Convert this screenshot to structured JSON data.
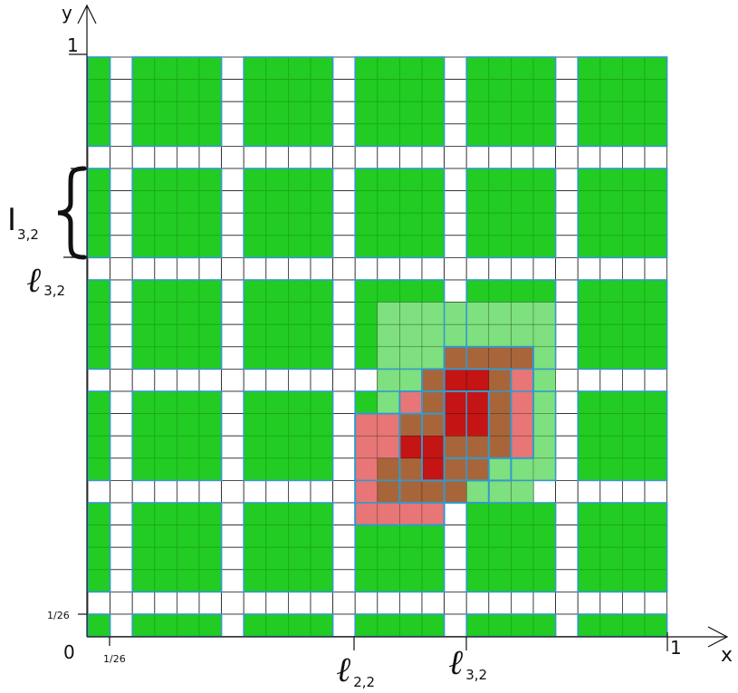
{
  "axes": {
    "x_label": "x",
    "y_label": "y",
    "origin_label": "0",
    "x_max_label": "1",
    "y_max_label": "1",
    "x_tick_label": "1/26",
    "y_tick_label": "1/26"
  },
  "grid": {
    "cells_per_axis": 26,
    "block_starts": [
      1,
      6,
      11,
      16,
      21,
      26
    ],
    "block_sizes": [
      1,
      4,
      4,
      4,
      4,
      4
    ]
  },
  "annotations": {
    "interval_symbol": "I",
    "interval_subscript": "3,2",
    "row_line_symbol": "ℓ",
    "row_line_subscript": "3,2",
    "col_lines": [
      {
        "symbol": "ℓ",
        "subscript": "2,2"
      },
      {
        "symbol": "ℓ",
        "subscript": "3,2"
      }
    ]
  },
  "colors": {
    "green_cell": "#22cc22",
    "green_grid": "#1aa51a",
    "block_outline": "#3399cc",
    "light_green": "#7ee07e",
    "light_red": "#e87676",
    "dark_red": "#c41414",
    "brown": "#a8653a",
    "white_grid": "#000000"
  },
  "overlay": {
    "light_green_cells": [
      [
        13,
        11
      ],
      [
        14,
        11
      ],
      [
        15,
        11
      ],
      [
        16,
        11
      ],
      [
        17,
        11
      ],
      [
        18,
        11
      ],
      [
        19,
        11
      ],
      [
        20,
        11
      ],
      [
        13,
        12
      ],
      [
        14,
        12
      ],
      [
        15,
        12
      ],
      [
        16,
        12
      ],
      [
        17,
        12
      ],
      [
        18,
        12
      ],
      [
        19,
        12
      ],
      [
        20,
        12
      ],
      [
        13,
        13
      ],
      [
        14,
        13
      ],
      [
        15,
        13
      ],
      [
        16,
        13
      ],
      [
        17,
        13
      ],
      [
        18,
        13
      ],
      [
        19,
        13
      ],
      [
        20,
        13
      ],
      [
        13,
        14
      ],
      [
        14,
        14
      ],
      [
        15,
        14
      ],
      [
        16,
        14
      ],
      [
        17,
        14
      ],
      [
        18,
        14
      ],
      [
        19,
        14
      ],
      [
        20,
        14
      ],
      [
        13,
        15
      ],
      [
        14,
        15
      ],
      [
        15,
        15
      ],
      [
        16,
        15
      ],
      [
        17,
        15
      ],
      [
        18,
        15
      ],
      [
        19,
        15
      ],
      [
        20,
        15
      ],
      [
        14,
        16
      ],
      [
        15,
        16
      ],
      [
        16,
        16
      ],
      [
        17,
        16
      ],
      [
        18,
        16
      ],
      [
        19,
        16
      ],
      [
        20,
        16
      ],
      [
        14,
        17
      ],
      [
        15,
        17
      ],
      [
        16,
        17
      ],
      [
        17,
        17
      ],
      [
        18,
        17
      ],
      [
        19,
        17
      ],
      [
        20,
        17
      ],
      [
        14,
        18
      ],
      [
        15,
        18
      ],
      [
        16,
        18
      ],
      [
        17,
        18
      ],
      [
        18,
        18
      ],
      [
        19,
        18
      ],
      [
        20,
        18
      ],
      [
        16,
        19
      ],
      [
        17,
        19
      ],
      [
        18,
        19
      ],
      [
        19,
        19
      ]
    ],
    "light_red_cells": [
      [
        12,
        16
      ],
      [
        13,
        16
      ],
      [
        12,
        17
      ],
      [
        13,
        17
      ],
      [
        12,
        18
      ],
      [
        13,
        18
      ],
      [
        12,
        19
      ],
      [
        13,
        19
      ],
      [
        14,
        19
      ],
      [
        15,
        19
      ],
      [
        12,
        20
      ],
      [
        13,
        20
      ],
      [
        14,
        20
      ],
      [
        15,
        20
      ],
      [
        14,
        15
      ],
      [
        15,
        15
      ],
      [
        17,
        13
      ],
      [
        18,
        13
      ],
      [
        19,
        14
      ],
      [
        19,
        15
      ],
      [
        19,
        16
      ],
      [
        19,
        17
      ]
    ],
    "brown_cells": [
      [
        16,
        13
      ],
      [
        17,
        13
      ],
      [
        18,
        13
      ],
      [
        19,
        13
      ],
      [
        15,
        14
      ],
      [
        18,
        14
      ],
      [
        15,
        15
      ],
      [
        18,
        15
      ],
      [
        14,
        16
      ],
      [
        15,
        16
      ],
      [
        18,
        16
      ],
      [
        14,
        17
      ],
      [
        16,
        17
      ],
      [
        17,
        17
      ],
      [
        18,
        17
      ],
      [
        13,
        18
      ],
      [
        14,
        18
      ],
      [
        16,
        18
      ],
      [
        17,
        18
      ],
      [
        13,
        19
      ],
      [
        14,
        19
      ],
      [
        15,
        19
      ],
      [
        16,
        19
      ]
    ],
    "dark_red_cells": [
      [
        16,
        14
      ],
      [
        17,
        14
      ],
      [
        16,
        15
      ],
      [
        17,
        15
      ],
      [
        16,
        16
      ],
      [
        17,
        16
      ],
      [
        15,
        17
      ],
      [
        15,
        18
      ],
      [
        14,
        17
      ]
    ],
    "outlines": [
      {
        "c0": 12,
        "r0": 16,
        "c1": 15,
        "r1": 20
      },
      {
        "c0": 14,
        "r0": 15,
        "c1": 17,
        "r1": 19
      },
      {
        "c0": 15,
        "r0": 14,
        "c1": 18,
        "r1": 18
      },
      {
        "c0": 16,
        "r0": 13,
        "c1": 19,
        "r1": 17
      }
    ]
  }
}
